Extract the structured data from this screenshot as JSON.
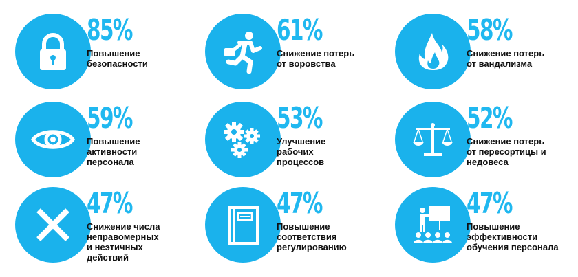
{
  "stats": [
    {
      "icon": "padlock-icon",
      "percent": "85%",
      "label": "Повышение\nбезопасности"
    },
    {
      "icon": "running-thief-icon",
      "percent": "61%",
      "label": "Снижение потерь\nот воровства"
    },
    {
      "icon": "fire-icon",
      "percent": "58%",
      "label": "Снижение потерь\nот вандализма"
    },
    {
      "icon": "eye-icon",
      "percent": "59%",
      "label": "Повышение\nактивности\nперсонала"
    },
    {
      "icon": "gears-icon",
      "percent": "53%",
      "label": "Улучшение\nрабочих\nпроцессов"
    },
    {
      "icon": "scales-icon",
      "percent": "52%",
      "label": "Снижение потерь\nот пересортицы и\nнедовеса"
    },
    {
      "icon": "x-mark-icon",
      "percent": "47%",
      "label": "Снижение числа\nнеправомерных\nи неэтичных\nдействий"
    },
    {
      "icon": "book-icon",
      "percent": "47%",
      "label": "Повышение\nсоответствия\nрегулированию"
    },
    {
      "icon": "presentation-icon",
      "percent": "47%",
      "label": "Повышение\nэффективности\nобучения персонала"
    }
  ],
  "colors": {
    "accent": "#1ab2ec",
    "percent_text": "#20b8f0",
    "label_text": "#111111"
  }
}
